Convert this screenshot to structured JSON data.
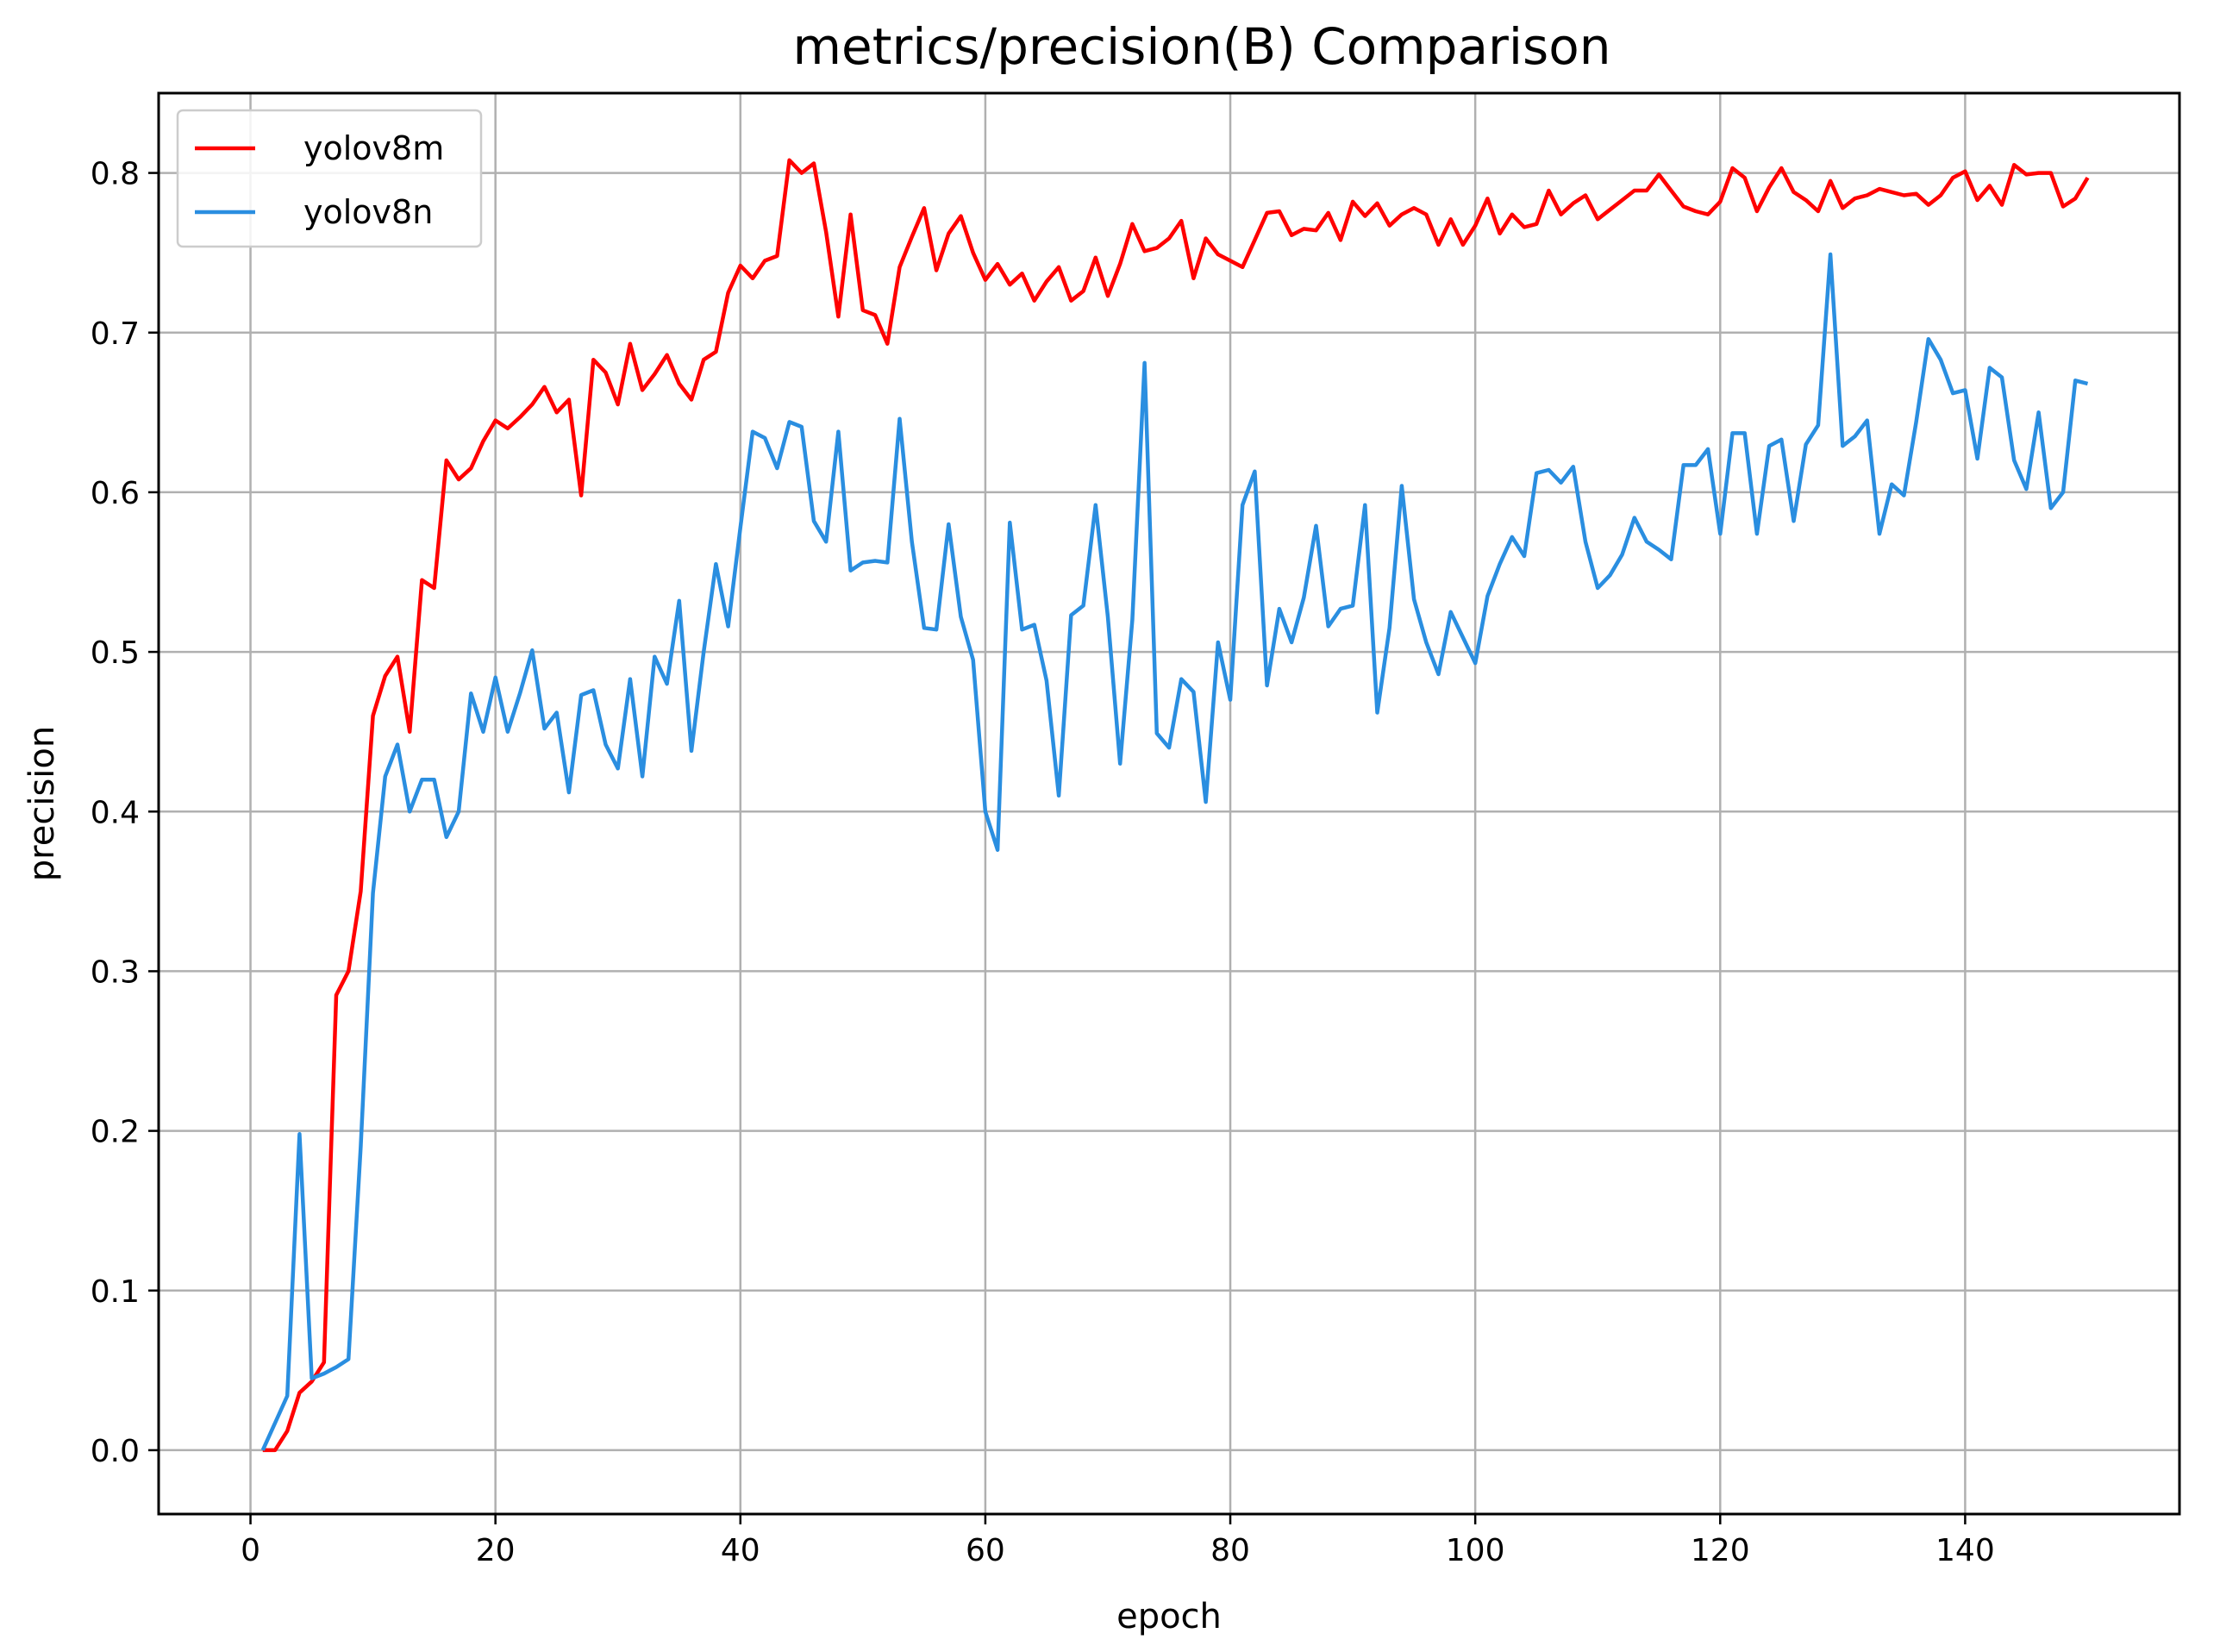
{
  "chart_data": {
    "type": "line",
    "title": "metrics/precision(B) Comparison",
    "xlabel": "epoch",
    "ylabel": "precision",
    "xlim": [
      -7.5,
      157.5
    ],
    "ylim": [
      -0.04,
      0.85
    ],
    "xticks": [
      0,
      20,
      40,
      60,
      80,
      100,
      120,
      140
    ],
    "xtick_labels": [
      "0",
      "20",
      "40",
      "60",
      "80",
      "100",
      "120",
      "140"
    ],
    "yticks": [
      0.0,
      0.1,
      0.2,
      0.3,
      0.4,
      0.5,
      0.6,
      0.7,
      0.8
    ],
    "ytick_labels": [
      "0.0",
      "0.1",
      "0.2",
      "0.3",
      "0.4",
      "0.5",
      "0.6",
      "0.7",
      "0.8"
    ],
    "grid": true,
    "legend_position": "top-left",
    "series": [
      {
        "name": "yolov8m",
        "color": "#ff0000",
        "x_start": 1,
        "values": [
          0.0,
          0.0,
          0.012,
          0.036,
          0.043,
          0.055,
          0.285,
          0.3,
          0.35,
          0.46,
          0.485,
          0.497,
          0.45,
          0.545,
          0.54,
          0.62,
          0.608,
          0.615,
          0.632,
          0.645,
          0.64,
          0.647,
          0.655,
          0.666,
          0.65,
          0.658,
          0.598,
          0.683,
          0.675,
          0.655,
          0.693,
          0.664,
          0.674,
          0.686,
          0.668,
          0.658,
          0.683,
          0.688,
          0.725,
          0.742,
          0.734,
          0.745,
          0.748,
          0.808,
          0.8,
          0.806,
          0.763,
          0.71,
          0.774,
          0.714,
          0.711,
          0.693,
          0.741,
          0.76,
          0.778,
          0.739,
          0.762,
          0.773,
          0.75,
          0.733,
          0.743,
          0.73,
          0.737,
          0.72,
          0.732,
          0.741,
          0.72,
          0.726,
          0.747,
          0.723,
          0.743,
          0.768,
          0.751,
          0.753,
          0.759,
          0.77,
          0.734,
          0.759,
          0.749,
          0.745,
          0.741,
          0.758,
          0.775,
          0.776,
          0.761,
          0.765,
          0.764,
          0.775,
          0.758,
          0.782,
          0.773,
          0.781,
          0.767,
          0.774,
          0.778,
          0.774,
          0.755,
          0.771,
          0.755,
          0.767,
          0.784,
          0.762,
          0.774,
          0.766,
          0.768,
          0.789,
          0.774,
          0.781,
          0.786,
          0.771,
          0.777,
          0.783,
          0.789,
          0.789,
          0.799,
          0.789,
          0.779,
          0.776,
          0.774,
          0.782,
          0.803,
          0.797,
          0.776,
          0.791,
          0.803,
          0.788,
          0.783,
          0.776,
          0.795,
          0.778,
          0.784,
          0.786,
          0.79,
          0.788,
          0.786,
          0.787,
          0.78,
          0.786,
          0.797,
          0.801,
          0.783,
          0.792,
          0.78,
          0.805,
          0.799,
          0.8,
          0.8,
          0.779,
          0.784,
          0.797
        ]
      },
      {
        "name": "yolov8n",
        "color": "#2a8ee0",
        "x_start": 1,
        "values": [
          0.0,
          0.017,
          0.034,
          0.198,
          0.045,
          0.048,
          0.052,
          0.057,
          0.19,
          0.349,
          0.422,
          0.442,
          0.4,
          0.42,
          0.42,
          0.384,
          0.4,
          0.474,
          0.45,
          0.484,
          0.45,
          0.474,
          0.501,
          0.452,
          0.462,
          0.412,
          0.473,
          0.476,
          0.442,
          0.427,
          0.483,
          0.422,
          0.497,
          0.48,
          0.532,
          0.438,
          0.5,
          0.555,
          0.516,
          0.578,
          0.638,
          0.634,
          0.615,
          0.644,
          0.641,
          0.582,
          0.569,
          0.638,
          0.551,
          0.556,
          0.557,
          0.556,
          0.646,
          0.569,
          0.515,
          0.514,
          0.58,
          0.522,
          0.495,
          0.4,
          0.376,
          0.581,
          0.514,
          0.517,
          0.482,
          0.41,
          0.523,
          0.529,
          0.592,
          0.522,
          0.43,
          0.52,
          0.681,
          0.449,
          0.44,
          0.483,
          0.475,
          0.406,
          0.506,
          0.47,
          0.592,
          0.613,
          0.479,
          0.527,
          0.506,
          0.534,
          0.579,
          0.516,
          0.527,
          0.529,
          0.592,
          0.462,
          0.515,
          0.604,
          0.533,
          0.506,
          0.486,
          0.525,
          0.509,
          0.493,
          0.535,
          0.555,
          0.572,
          0.56,
          0.612,
          0.614,
          0.606,
          0.616,
          0.569,
          0.54,
          0.548,
          0.561,
          0.584,
          0.569,
          0.564,
          0.558,
          0.617,
          0.617,
          0.627,
          0.574,
          0.637,
          0.637,
          0.574,
          0.629,
          0.633,
          0.582,
          0.63,
          0.642,
          0.749,
          0.629,
          0.635,
          0.645,
          0.574,
          0.605,
          0.598,
          0.644,
          0.696,
          0.683,
          0.662,
          0.664,
          0.621,
          0.678,
          0.672,
          0.62,
          0.602,
          0.65,
          0.59,
          0.6,
          0.67,
          0.668
        ]
      }
    ]
  }
}
